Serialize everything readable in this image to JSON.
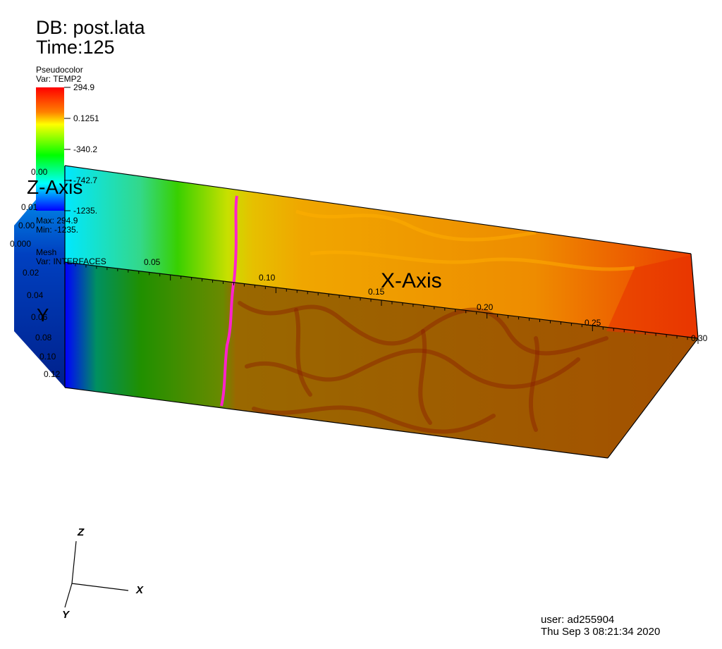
{
  "header": {
    "db": "DB: post.lata",
    "time": "Time:125"
  },
  "legend": {
    "plot_type": "Pseudocolor",
    "variable": "Var: TEMP2",
    "tick_labels": [
      "294.9",
      "0.1251",
      "-340.2",
      "-742.7",
      "-1235."
    ],
    "max_label": "Max: 294.9",
    "min_label": "Min: -1235.",
    "mesh_label": "Mesh",
    "mesh_var": "Var: INTERFACES",
    "colors": [
      "#ff0000",
      "#ff8000",
      "#ffff00",
      "#00ff00",
      "#00ffff",
      "#0000ff"
    ]
  },
  "axes": {
    "x_title": "X-Axis",
    "y_title": "Y",
    "z_title": "Z-Axis",
    "x_ticks": [
      "0.05",
      "0.10",
      "0.15",
      "0.20",
      "0.25",
      "0.30"
    ],
    "y_ticks": [
      "0.000",
      "0.02",
      "0.04",
      "0.06",
      "0.08",
      "0.10",
      "0.12"
    ],
    "z_ticks": [
      "0.00",
      "0.01",
      "0.00"
    ]
  },
  "triad": {
    "x": "X",
    "y": "Y",
    "z": "Z"
  },
  "footer": {
    "user": "user: ad255904",
    "date": "Thu Sep  3 08:21:34 2020"
  },
  "colors": {
    "interface": "#ff22cc",
    "box_edge": "#000000"
  }
}
